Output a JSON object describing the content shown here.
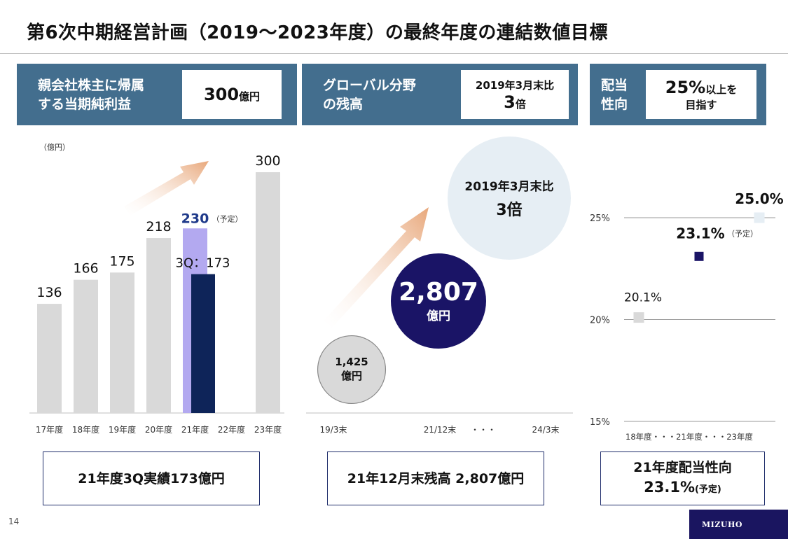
{
  "page": {
    "title": "第6次中期経営計画（2019～2023年度）の最終年度の連結数値目標",
    "page_number": "14",
    "logo": "MIZUHO"
  },
  "panels": [
    {
      "header_label_line1": "親会社株主に帰属",
      "header_label_line2": "する当期純利益",
      "box_main": "300",
      "box_suffix": "億円",
      "bottom_text": "21年度3Q実績173億円"
    },
    {
      "header_label_line1": "グローバル分野",
      "header_label_line2": "の残高",
      "box_line1": "2019年3月末比",
      "box_main": "3",
      "box_suffix": "倍",
      "bottom_text": "21年12月末残高 2,807億円"
    },
    {
      "header_label_line1": "配当",
      "header_label_line2": "性向",
      "box_main": "25%",
      "box_suffix": "以上を",
      "box_line2": "目指す",
      "bottom_line1": "21年度配当性向",
      "bottom_main": "23.1%",
      "bottom_note": "(予定)"
    }
  ],
  "chart_data": [
    {
      "type": "bar",
      "unit_label": "（億円）",
      "categories": [
        "17年度",
        "18年度",
        "19年度",
        "20年度",
        "21年度",
        "22年度",
        "23年度"
      ],
      "series": [
        {
          "values": [
            136,
            166,
            175,
            218,
            null,
            null,
            300
          ]
        },
        {
          "values": [
            null,
            null,
            null,
            null,
            230,
            null,
            null
          ]
        },
        {
          "values": [
            null,
            null,
            null,
            null,
            173,
            null,
            null
          ]
        }
      ],
      "data_labels": [
        "136",
        "166",
        "175",
        "218",
        "230",
        "",
        "300"
      ],
      "forecast_note": "（予定）",
      "q3_label": "3Q：173",
      "colors": {
        "actual": "#d9d9d9",
        "plan": "#b3a9f0",
        "q3": "#0e2459",
        "plan_label": "#1f3a8a",
        "arrow": "#e8a77a"
      },
      "ylim": [
        0,
        330
      ]
    },
    {
      "type": "scatter",
      "x_labels": [
        "19/3末",
        "21/12末",
        "・・・",
        "24/3末"
      ],
      "points": [
        {
          "x": "19/3末",
          "value": 1425,
          "label": "1,425",
          "unit": "億円",
          "color": "#d9d9d9"
        },
        {
          "x": "21/12末",
          "value": 2807,
          "label": "2,807",
          "unit": "億円",
          "color": "#1a1466"
        }
      ],
      "target": {
        "x": "24/3末",
        "line1": "2019年3月末比",
        "line2": "3倍",
        "color": "#e6eef4"
      }
    },
    {
      "type": "line",
      "x_labels": "18年度・・・21年度・・・23年度",
      "y_ticks": [
        "25%",
        "20%",
        "15%"
      ],
      "ylim": [
        15,
        26
      ],
      "points": [
        {
          "x": "18年度",
          "value": 20.1,
          "label": "20.1%",
          "color": "#d9d9d9"
        },
        {
          "x": "21年度",
          "value": 23.1,
          "label": "23.1%",
          "note": "（予定）",
          "color": "#1a1466"
        },
        {
          "x": "23年度",
          "value": 25.0,
          "label": "25.0%",
          "color": "#e6eef4"
        }
      ]
    }
  ]
}
